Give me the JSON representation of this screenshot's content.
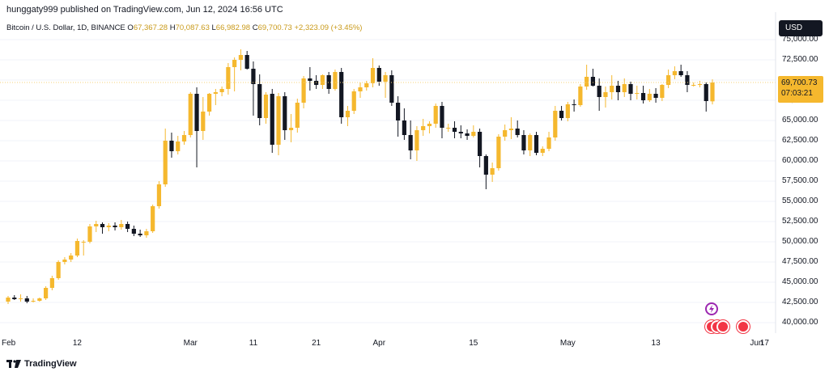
{
  "header": {
    "publish_line": "hunggaty999 published on TradingView.com, Jun 12, 2024 16:56 UTC"
  },
  "symbol": {
    "name": "Bitcoin / U.S. Dollar, 1D, BINANCE",
    "o_label": "O",
    "o_value": "67,367.28",
    "h_label": "H",
    "h_value": "70,087.63",
    "l_label": "L",
    "l_value": "66,982.98",
    "c_label": "C",
    "c_value": "69,700.73",
    "change": "+2,323.09 (+3.45%)"
  },
  "currency_button": "USD",
  "last_price": {
    "price": "69,700.73",
    "countdown": "07:03:21"
  },
  "footer": {
    "brand": "TradingView"
  },
  "colors": {
    "up": "#f5b82e",
    "down": "#131722",
    "grid": "#f0f3fa",
    "price_line": "#f5d27a",
    "event_purple": "#9c27b0",
    "event_red": "#f23645"
  },
  "chart_data": {
    "type": "candlestick",
    "title": "Bitcoin / U.S. Dollar, 1D, BINANCE",
    "ylim": [
      38000,
      77000
    ],
    "y_ticks": [
      "75,000.00",
      "72,500.00",
      "70,000.00",
      "67,500.00",
      "65,000.00",
      "62,500.00",
      "60,000.00",
      "57,500.00",
      "55,000.00",
      "52,500.00",
      "50,000.00",
      "47,500.00",
      "45,000.00",
      "42,500.00",
      "40,000.00"
    ],
    "x_ticks": [
      "Feb",
      "12",
      "Mar",
      "11",
      "21",
      "Apr",
      "15",
      "May",
      "13",
      "Jun",
      "17"
    ],
    "grid": true,
    "candles": [
      {
        "o": 42600,
        "h": 43300,
        "l": 42300,
        "c": 43100
      },
      {
        "o": 43100,
        "h": 43400,
        "l": 42800,
        "c": 42900
      },
      {
        "o": 42900,
        "h": 43500,
        "l": 42600,
        "c": 43000
      },
      {
        "o": 43000,
        "h": 43300,
        "l": 42400,
        "c": 42600
      },
      {
        "o": 42600,
        "h": 43000,
        "l": 42500,
        "c": 42700
      },
      {
        "o": 42700,
        "h": 43100,
        "l": 42600,
        "c": 43000
      },
      {
        "o": 43000,
        "h": 44500,
        "l": 42800,
        "c": 44300
      },
      {
        "o": 44300,
        "h": 45800,
        "l": 44000,
        "c": 45500
      },
      {
        "o": 45500,
        "h": 47700,
        "l": 45300,
        "c": 47500
      },
      {
        "o": 47500,
        "h": 48100,
        "l": 47200,
        "c": 47800
      },
      {
        "o": 47800,
        "h": 48600,
        "l": 47500,
        "c": 48300
      },
      {
        "o": 48300,
        "h": 50400,
        "l": 48100,
        "c": 50100
      },
      {
        "o": 50000,
        "h": 50200,
        "l": 48300,
        "c": 50000
      },
      {
        "o": 50000,
        "h": 52200,
        "l": 49800,
        "c": 51900
      },
      {
        "o": 51900,
        "h": 52600,
        "l": 51200,
        "c": 52200
      },
      {
        "o": 52200,
        "h": 52400,
        "l": 51000,
        "c": 51800
      },
      {
        "o": 51800,
        "h": 52300,
        "l": 51300,
        "c": 52000
      },
      {
        "o": 52000,
        "h": 52400,
        "l": 51400,
        "c": 51800
      },
      {
        "o": 51800,
        "h": 52700,
        "l": 51500,
        "c": 52200
      },
      {
        "o": 52200,
        "h": 52500,
        "l": 51200,
        "c": 51600
      },
      {
        "o": 51600,
        "h": 52000,
        "l": 50700,
        "c": 51000
      },
      {
        "o": 51000,
        "h": 51500,
        "l": 50600,
        "c": 50800
      },
      {
        "o": 50800,
        "h": 51600,
        "l": 50500,
        "c": 51300
      },
      {
        "o": 51300,
        "h": 54600,
        "l": 51100,
        "c": 54400
      },
      {
        "o": 54400,
        "h": 57500,
        "l": 54100,
        "c": 57100
      },
      {
        "o": 57100,
        "h": 64000,
        "l": 56800,
        "c": 62500
      },
      {
        "o": 62500,
        "h": 63500,
        "l": 60400,
        "c": 61200
      },
      {
        "o": 61200,
        "h": 63100,
        "l": 60800,
        "c": 62400
      },
      {
        "o": 62400,
        "h": 63700,
        "l": 62000,
        "c": 63200
      },
      {
        "o": 63200,
        "h": 68500,
        "l": 62900,
        "c": 68300
      },
      {
        "o": 68300,
        "h": 69100,
        "l": 59200,
        "c": 63700
      },
      {
        "o": 63700,
        "h": 67900,
        "l": 62600,
        "c": 66100
      },
      {
        "o": 66100,
        "h": 68400,
        "l": 65600,
        "c": 68300
      },
      {
        "o": 68300,
        "h": 68900,
        "l": 66900,
        "c": 68500
      },
      {
        "o": 68500,
        "h": 69200,
        "l": 68000,
        "c": 68900
      },
      {
        "o": 68900,
        "h": 72100,
        "l": 68200,
        "c": 71600
      },
      {
        "o": 71600,
        "h": 72800,
        "l": 68600,
        "c": 72500
      },
      {
        "o": 72500,
        "h": 73800,
        "l": 71200,
        "c": 73100
      },
      {
        "o": 73100,
        "h": 73600,
        "l": 71300,
        "c": 71400
      },
      {
        "o": 71400,
        "h": 72300,
        "l": 65600,
        "c": 69500
      },
      {
        "o": 69500,
        "h": 70700,
        "l": 64400,
        "c": 65300
      },
      {
        "o": 65300,
        "h": 68500,
        "l": 64600,
        "c": 68200
      },
      {
        "o": 68300,
        "h": 68900,
        "l": 61000,
        "c": 62000
      },
      {
        "o": 62000,
        "h": 68400,
        "l": 60700,
        "c": 68000
      },
      {
        "o": 68000,
        "h": 68500,
        "l": 62600,
        "c": 63800
      },
      {
        "o": 63800,
        "h": 65800,
        "l": 62300,
        "c": 64100
      },
      {
        "o": 64100,
        "h": 67700,
        "l": 63500,
        "c": 67200
      },
      {
        "o": 67200,
        "h": 70500,
        "l": 66500,
        "c": 70200
      },
      {
        "o": 70200,
        "h": 71600,
        "l": 68700,
        "c": 69900
      },
      {
        "o": 69900,
        "h": 70600,
        "l": 68900,
        "c": 69400
      },
      {
        "o": 69400,
        "h": 70700,
        "l": 68900,
        "c": 70600
      },
      {
        "o": 70600,
        "h": 71000,
        "l": 68300,
        "c": 68900
      },
      {
        "o": 68900,
        "h": 71300,
        "l": 68700,
        "c": 71000
      },
      {
        "o": 71000,
        "h": 71500,
        "l": 64600,
        "c": 65400
      },
      {
        "o": 65400,
        "h": 66800,
        "l": 64300,
        "c": 66200
      },
      {
        "o": 66200,
        "h": 68900,
        "l": 65800,
        "c": 68600
      },
      {
        "o": 68600,
        "h": 69700,
        "l": 67800,
        "c": 69100
      },
      {
        "o": 69100,
        "h": 69900,
        "l": 68700,
        "c": 69600
      },
      {
        "o": 69600,
        "h": 72700,
        "l": 69100,
        "c": 71500
      },
      {
        "o": 71500,
        "h": 71800,
        "l": 69300,
        "c": 69800
      },
      {
        "o": 69800,
        "h": 71000,
        "l": 67800,
        "c": 70600
      },
      {
        "o": 70600,
        "h": 71200,
        "l": 66800,
        "c": 67200
      },
      {
        "o": 67200,
        "h": 68000,
        "l": 63000,
        "c": 65000
      },
      {
        "o": 65000,
        "h": 66500,
        "l": 62600,
        "c": 63200
      },
      {
        "o": 63200,
        "h": 65000,
        "l": 60200,
        "c": 61300
      },
      {
        "o": 61300,
        "h": 64300,
        "l": 60000,
        "c": 63800
      },
      {
        "o": 63800,
        "h": 65200,
        "l": 63100,
        "c": 64300
      },
      {
        "o": 64300,
        "h": 64900,
        "l": 63400,
        "c": 64600
      },
      {
        "o": 64600,
        "h": 67100,
        "l": 64100,
        "c": 66800
      },
      {
        "o": 66800,
        "h": 67300,
        "l": 62800,
        "c": 64100
      },
      {
        "o": 64100,
        "h": 64600,
        "l": 63600,
        "c": 64100
      },
      {
        "o": 64100,
        "h": 64900,
        "l": 62800,
        "c": 63600
      },
      {
        "o": 63600,
        "h": 64400,
        "l": 62800,
        "c": 63400
      },
      {
        "o": 63400,
        "h": 63900,
        "l": 62600,
        "c": 63100
      },
      {
        "o": 63100,
        "h": 64400,
        "l": 62900,
        "c": 63600
      },
      {
        "o": 63600,
        "h": 64000,
        "l": 59200,
        "c": 60600
      },
      {
        "o": 60600,
        "h": 60800,
        "l": 56500,
        "c": 58300
      },
      {
        "o": 58300,
        "h": 59800,
        "l": 57400,
        "c": 59100
      },
      {
        "o": 59100,
        "h": 63300,
        "l": 58800,
        "c": 63000
      },
      {
        "o": 63000,
        "h": 64500,
        "l": 62500,
        "c": 63800
      },
      {
        "o": 63800,
        "h": 65400,
        "l": 62700,
        "c": 64000
      },
      {
        "o": 64000,
        "h": 65000,
        "l": 62900,
        "c": 63200
      },
      {
        "o": 63200,
        "h": 63800,
        "l": 60800,
        "c": 61300
      },
      {
        "o": 61300,
        "h": 63400,
        "l": 60600,
        "c": 63200
      },
      {
        "o": 63200,
        "h": 63600,
        "l": 60700,
        "c": 61000
      },
      {
        "o": 61000,
        "h": 61800,
        "l": 60600,
        "c": 61500
      },
      {
        "o": 61500,
        "h": 63600,
        "l": 61200,
        "c": 62900
      },
      {
        "o": 62900,
        "h": 66800,
        "l": 62500,
        "c": 66200
      },
      {
        "o": 66200,
        "h": 66800,
        "l": 65000,
        "c": 65300
      },
      {
        "o": 65300,
        "h": 67300,
        "l": 64900,
        "c": 67000
      },
      {
        "o": 67000,
        "h": 67600,
        "l": 66100,
        "c": 66900
      },
      {
        "o": 66900,
        "h": 69500,
        "l": 66700,
        "c": 69200
      },
      {
        "o": 69200,
        "h": 71900,
        "l": 68800,
        "c": 70400
      },
      {
        "o": 70400,
        "h": 71400,
        "l": 69200,
        "c": 69300
      },
      {
        "o": 69300,
        "h": 70200,
        "l": 66200,
        "c": 67900
      },
      {
        "o": 67900,
        "h": 69200,
        "l": 66600,
        "c": 68500
      },
      {
        "o": 68500,
        "h": 70600,
        "l": 67600,
        "c": 69300
      },
      {
        "o": 69300,
        "h": 69900,
        "l": 67500,
        "c": 68500
      },
      {
        "o": 68500,
        "h": 70200,
        "l": 67900,
        "c": 69500
      },
      {
        "o": 69500,
        "h": 69800,
        "l": 67500,
        "c": 68300
      },
      {
        "o": 68300,
        "h": 69300,
        "l": 67600,
        "c": 68400
      },
      {
        "o": 68400,
        "h": 69300,
        "l": 67100,
        "c": 67500
      },
      {
        "o": 67500,
        "h": 68900,
        "l": 67300,
        "c": 68300
      },
      {
        "o": 68300,
        "h": 69000,
        "l": 67200,
        "c": 67800
      },
      {
        "o": 67800,
        "h": 69500,
        "l": 67400,
        "c": 69400
      },
      {
        "o": 69400,
        "h": 71300,
        "l": 69000,
        "c": 70600
      },
      {
        "o": 70600,
        "h": 71700,
        "l": 70100,
        "c": 71100
      },
      {
        "o": 71100,
        "h": 71900,
        "l": 70400,
        "c": 70600
      },
      {
        "o": 70600,
        "h": 71100,
        "l": 68500,
        "c": 69400
      },
      {
        "o": 69400,
        "h": 69700,
        "l": 69200,
        "c": 69400
      },
      {
        "o": 69400,
        "h": 69900,
        "l": 69100,
        "c": 69500
      },
      {
        "o": 69500,
        "h": 69700,
        "l": 66100,
        "c": 67400
      },
      {
        "o": 67367,
        "h": 70088,
        "l": 66983,
        "c": 69701
      }
    ]
  }
}
